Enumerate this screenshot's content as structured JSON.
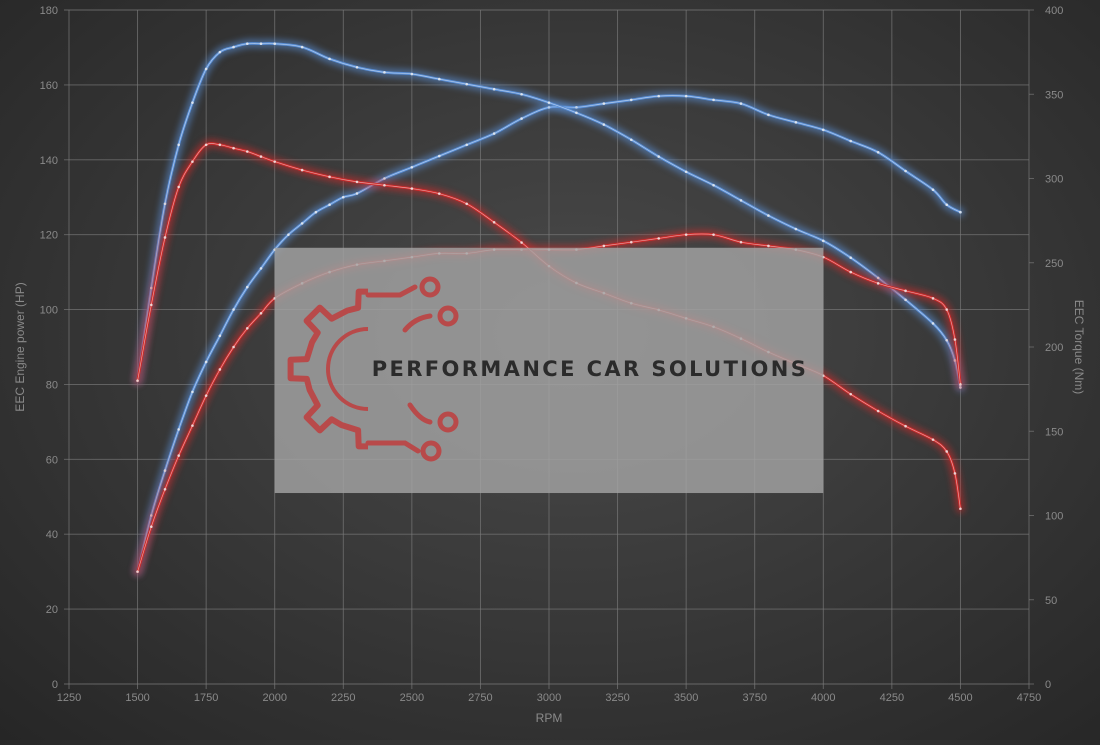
{
  "chart_data": {
    "type": "line",
    "xlabel": "RPM",
    "ylabel": "EEC Engine power (HP)",
    "y2label": "EEC Torque (Nm)",
    "xlim": [
      1250,
      4750
    ],
    "ylim": [
      0,
      180
    ],
    "y2lim": [
      0,
      400
    ],
    "xticks": [
      "1250",
      "1500",
      "1750",
      "2000",
      "2250",
      "2500",
      "2750",
      "3000",
      "3250",
      "3500",
      "3750",
      "4000",
      "4250",
      "4500",
      "4750"
    ],
    "yticks": [
      "0",
      "20",
      "40",
      "60",
      "80",
      "100",
      "120",
      "140",
      "160",
      "180"
    ],
    "y2ticks": [
      "0",
      "50",
      "100",
      "150",
      "200",
      "250",
      "300",
      "350",
      "400"
    ],
    "grid": true,
    "colors": {
      "tuned": "#5a8fd6",
      "stock": "#cc2a2a"
    },
    "series": [
      {
        "color": "tuned",
        "axis": "left",
        "x": [
          1500,
          1550,
          1600,
          1650,
          1700,
          1750,
          1800,
          1850,
          1900,
          1950,
          2000,
          2050,
          2100,
          2150,
          2200,
          2250,
          2300,
          2400,
          2500,
          2600,
          2700,
          2800,
          2900,
          3000,
          3100,
          3200,
          3300,
          3400,
          3500,
          3600,
          3700,
          3800,
          3900,
          4000,
          4100,
          4200,
          4300,
          4400,
          4450,
          4500
        ],
        "y": [
          30,
          45,
          57,
          68,
          78,
          86,
          93,
          100,
          106,
          111,
          116,
          120,
          123,
          126,
          128,
          130,
          131,
          135,
          138,
          141,
          144,
          147,
          151,
          154,
          154,
          155,
          156,
          157,
          157,
          156,
          155,
          152,
          150,
          148,
          145,
          142,
          137,
          132,
          128,
          126
        ]
      },
      {
        "color": "tuned",
        "axis": "right",
        "x": [
          1500,
          1550,
          1600,
          1650,
          1700,
          1750,
          1800,
          1850,
          1900,
          1950,
          2000,
          2100,
          2200,
          2300,
          2400,
          2500,
          2600,
          2700,
          2800,
          2900,
          3000,
          3100,
          3200,
          3300,
          3400,
          3500,
          3600,
          3700,
          3800,
          3900,
          4000,
          4100,
          4200,
          4300,
          4400,
          4450,
          4480,
          4500
        ],
        "y": [
          180,
          235,
          285,
          320,
          345,
          365,
          375,
          378,
          380,
          380,
          380,
          378,
          371,
          366,
          363,
          362,
          359,
          356,
          353,
          350,
          345,
          339,
          332,
          323,
          313,
          304,
          296,
          287,
          278,
          270,
          263,
          253,
          241,
          228,
          214,
          204,
          192,
          176
        ]
      },
      {
        "color": "stock",
        "axis": "left",
        "x": [
          1500,
          1550,
          1600,
          1650,
          1700,
          1750,
          1800,
          1850,
          1900,
          1950,
          2000,
          2100,
          2200,
          2300,
          2400,
          2500,
          2600,
          2700,
          2800,
          2900,
          3000,
          3100,
          3200,
          3300,
          3400,
          3500,
          3600,
          3700,
          3800,
          3900,
          4000,
          4100,
          4200,
          4300,
          4400,
          4450,
          4480,
          4500
        ],
        "y": [
          30,
          42,
          52,
          61,
          69,
          77,
          84,
          90,
          95,
          99,
          103,
          107,
          110,
          112,
          113,
          114,
          115,
          115,
          116,
          116,
          116,
          116,
          117,
          118,
          119,
          120,
          120,
          118,
          117,
          116,
          114,
          110,
          107,
          105,
          103,
          100,
          92,
          80
        ]
      },
      {
        "color": "stock",
        "axis": "right",
        "x": [
          1500,
          1550,
          1600,
          1650,
          1700,
          1750,
          1800,
          1850,
          1900,
          1950,
          2000,
          2100,
          2200,
          2300,
          2400,
          2500,
          2600,
          2700,
          2800,
          2900,
          3000,
          3100,
          3200,
          3300,
          3400,
          3500,
          3600,
          3700,
          3800,
          3900,
          4000,
          4100,
          4200,
          4300,
          4400,
          4450,
          4480,
          4500
        ],
        "y": [
          180,
          225,
          265,
          295,
          310,
          320,
          320,
          318,
          316,
          313,
          310,
          305,
          301,
          298,
          296,
          294,
          291,
          285,
          274,
          262,
          248,
          238,
          232,
          226,
          222,
          217,
          212,
          205,
          197,
          190,
          183,
          172,
          162,
          153,
          145,
          138,
          125,
          104
        ]
      }
    ]
  },
  "logo": {
    "brand_name": "PERFORMANCE CAR SOLUTIONS",
    "color": "#b84a4a",
    "box_color": "#a3a3a3",
    "box_range": {
      "x": [
        2000,
        4000
      ],
      "y": [
        51,
        116.5
      ]
    }
  }
}
